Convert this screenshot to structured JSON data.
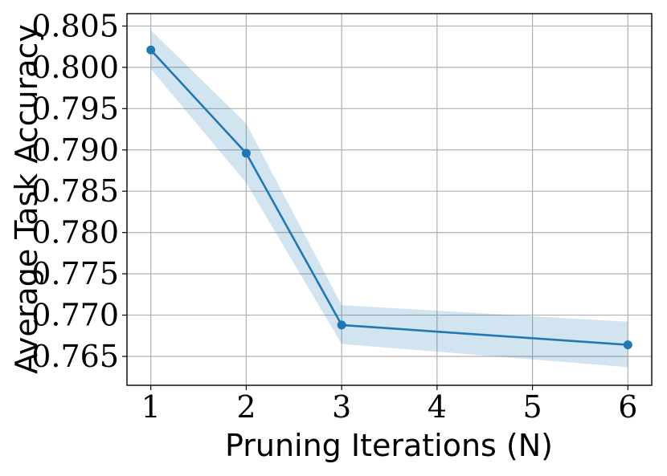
{
  "chart_data": {
    "type": "line",
    "xlabel": "Pruning Iterations (N)",
    "ylabel": "Average Task Accuracy",
    "x": [
      1,
      2,
      3,
      6
    ],
    "xticks": [
      "1",
      "2",
      "3",
      "4",
      "5",
      "6"
    ],
    "yticks": [
      "0.765",
      "0.770",
      "0.775",
      "0.780",
      "0.785",
      "0.790",
      "0.795",
      "0.800",
      "0.805"
    ],
    "xlim": [
      0.75,
      6.25
    ],
    "ylim": [
      0.7615,
      0.8065
    ],
    "grid": true,
    "series": [
      {
        "values": [
          0.8021,
          0.7896,
          0.7688,
          0.7664
        ],
        "lower": [
          0.7998,
          0.786,
          0.7665,
          0.7637
        ],
        "upper": [
          0.8045,
          0.7932,
          0.7712,
          0.7692
        ],
        "color": "#1f77b4",
        "band_color": "#1f77b4",
        "marker": "circle"
      }
    ]
  }
}
